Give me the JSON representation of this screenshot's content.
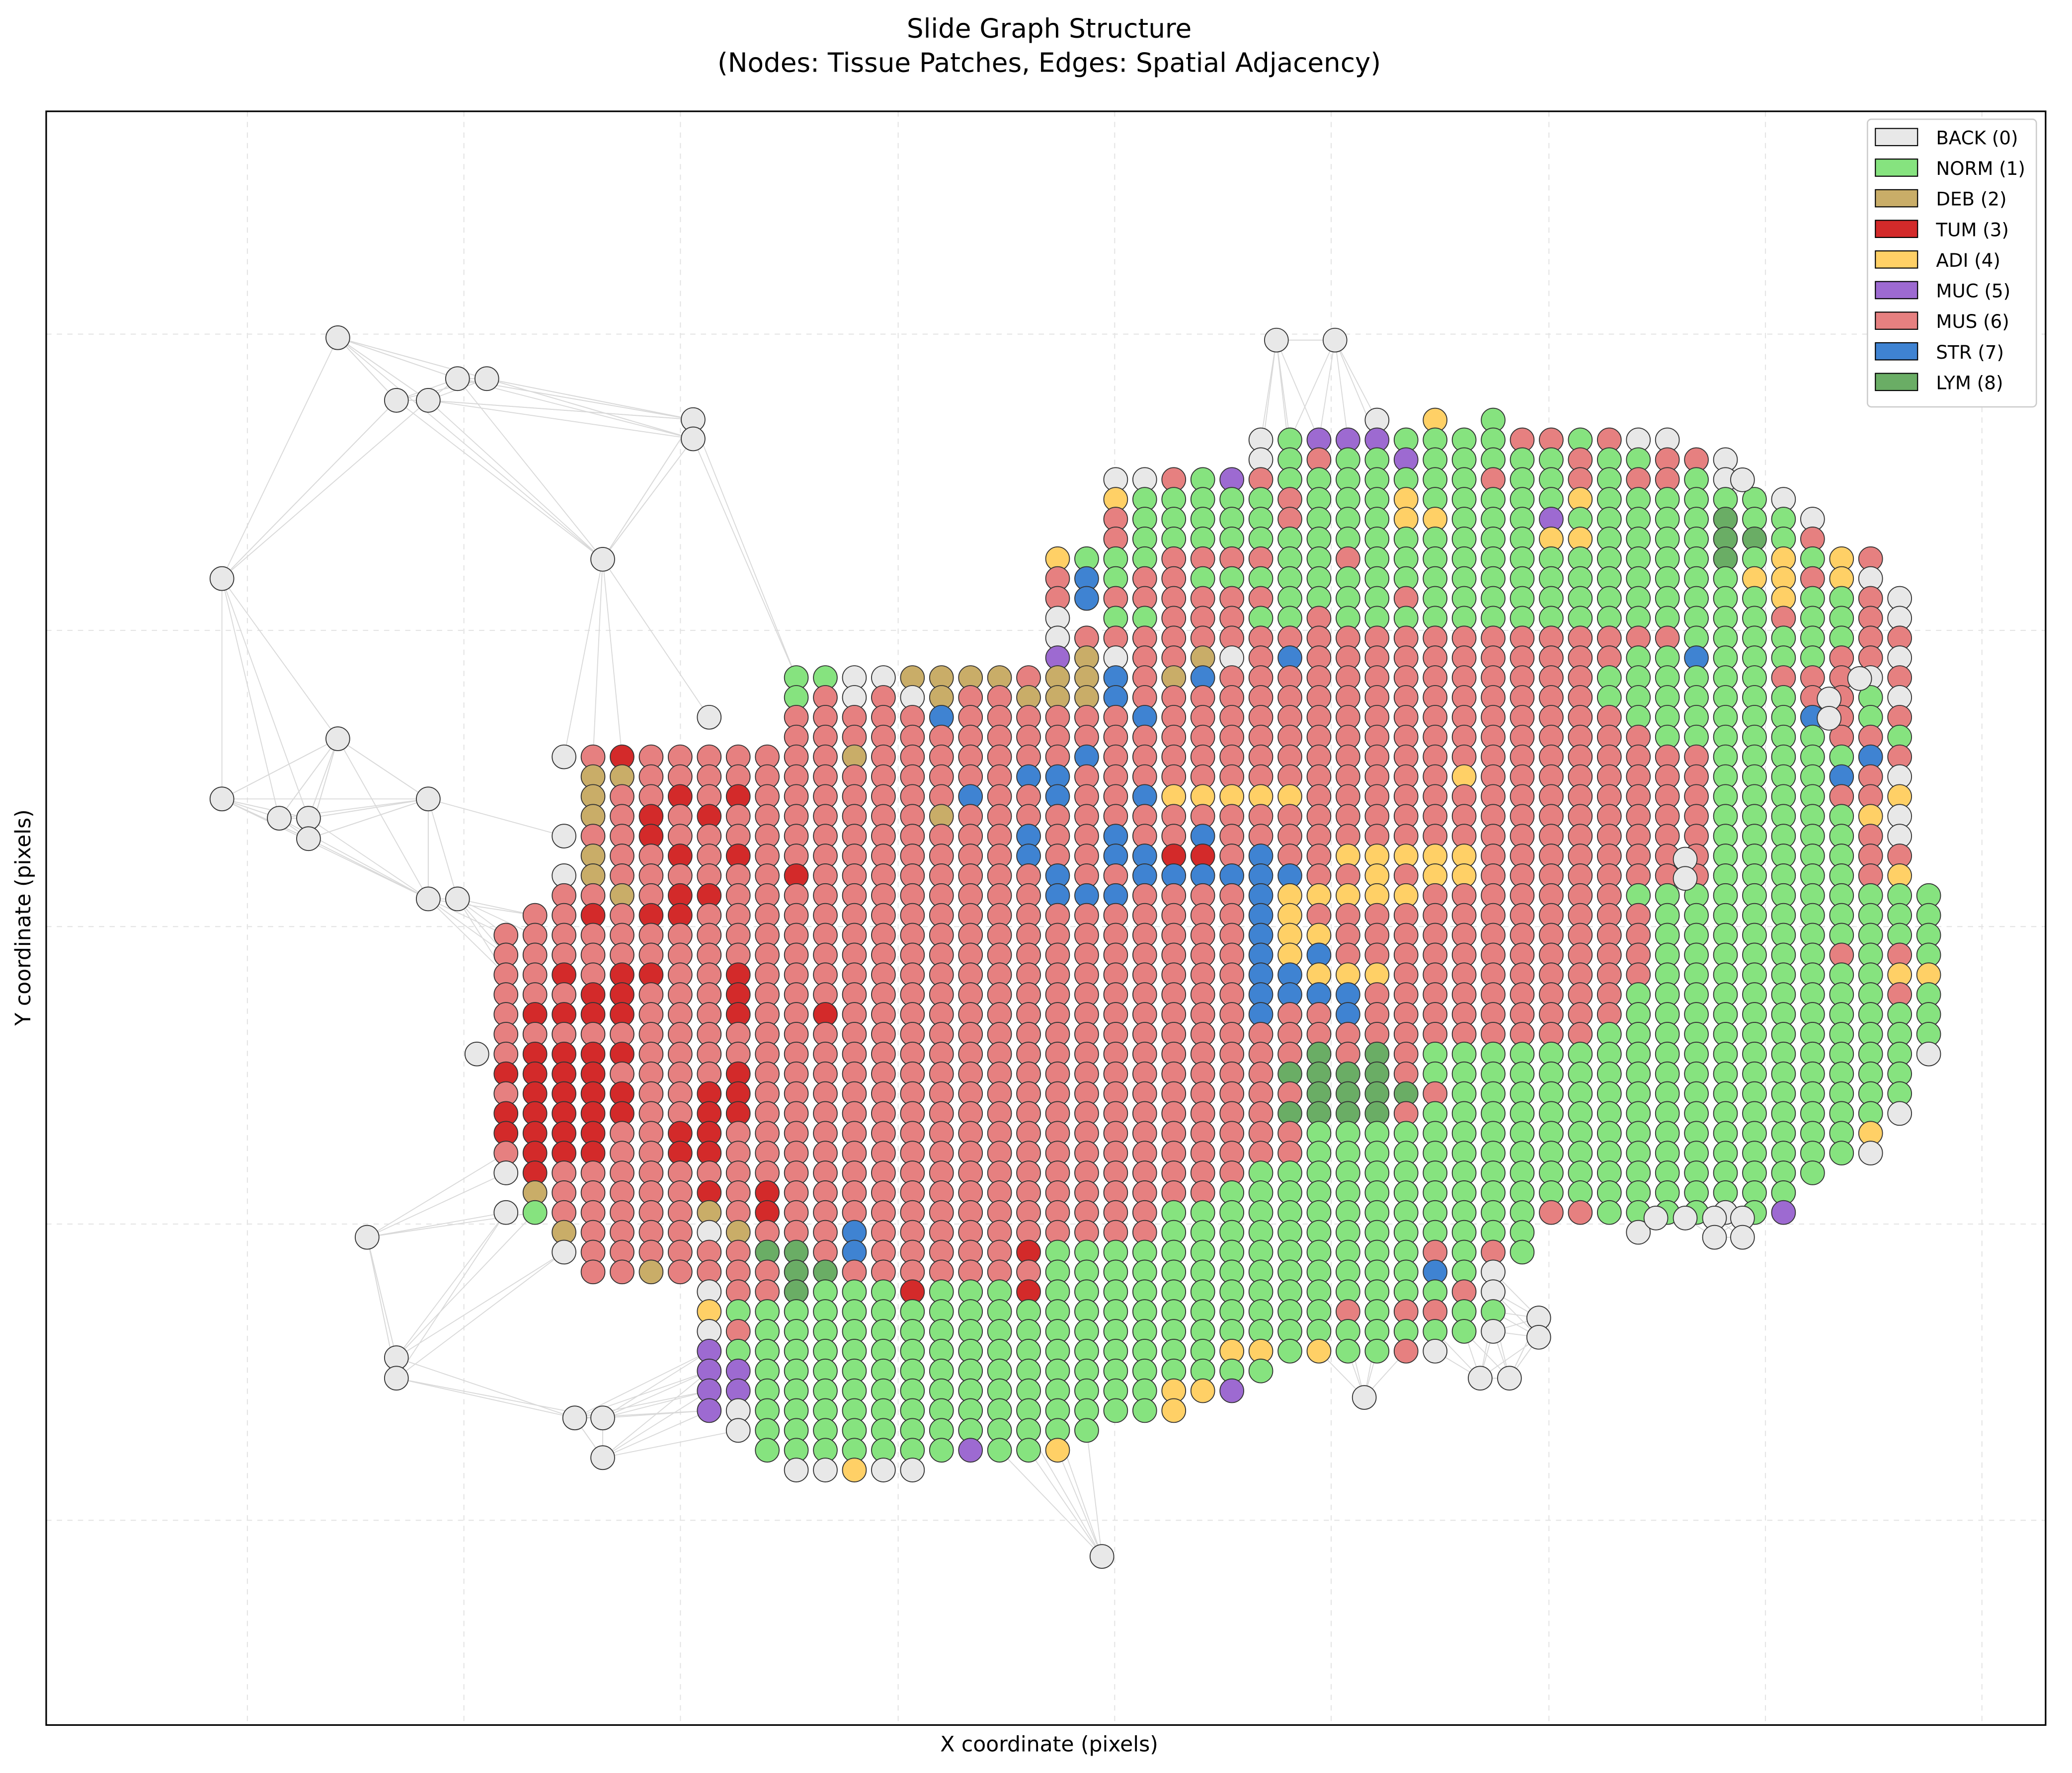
{
  "chart_data": {
    "type": "scatter",
    "title": "Slide Graph Structure",
    "subtitle": "(Nodes: Tissue Patches, Edges: Spatial Adjacency)",
    "xlabel": "X coordinate (pixels)",
    "ylabel": "Y coordinate (pixels)",
    "grid": true,
    "legend_position": "top-right",
    "edge_color": "#d9d9d9",
    "classes": [
      {
        "code": "B",
        "label": "BACK (0)",
        "color": "#e8e8e8"
      },
      {
        "code": "N",
        "label": "NORM (1)",
        "color": "#86e37f"
      },
      {
        "code": "D",
        "label": "DEB (2)",
        "color": "#c9ad68"
      },
      {
        "code": "T",
        "label": "TUM (3)",
        "color": "#d32a2a"
      },
      {
        "code": "A",
        "label": "ADI (4)",
        "color": "#ffd066"
      },
      {
        "code": "C",
        "label": "MUC (5)",
        "color": "#9d6ad1"
      },
      {
        "code": "M",
        "label": "MUS (6)",
        "color": "#e68080"
      },
      {
        "code": "S",
        "label": "STR (7)",
        "color": "#3f83d2"
      },
      {
        "code": "L",
        "label": "LYM (8)",
        "color": "#6aad65"
      }
    ],
    "grid_start": {
      "col": 19,
      "row": 11
    },
    "nodes_grid": [
      "..................................................",
      "...............................B.A.N..............",
      "...........................BNCCCNNNNMMNMBB........",
      "...........................BNMNNCNNNNNMNNMMB......",
      "......................BBMNCMNNNNNNNMNNMNMMNB......",
      "......................ANNNNNMNNNANNNNNANNNNNNB.....",
      "......................MNNNNNMNNNAANNNCNNNNNLNNB...",
      "......................MNNNNNNNNNNNNNNAANNNNLLNM...",
      "....................ANNNMMMMNNMNNNNNNNNNNNNLNANAM.",
      "....................MSNMMNNNNNNNNNNNNNNNNNNNAAMAB.",
      "....................MSMMMMMMNNNNMNNNNNNNNNNNNANNMB.",
      "....................B.NNMMMNNMNNNNNNNNNNNNNNNMNNMB",
      "....................BMMMMMMMMMMMMMMMMMMMMMNNNNNNMM",
      "....................CDBMMDBMSMMMMMMMMMMMNNSNNNNMMB",
      "...........NNBBDDDDMDDSMDSMMMMMMMMMMMMMNNNNNNMMMBM",
      "...........NMBMBDMMDDDSMMMMMMMMMMMMMMMMNNNNNNNMMNB",
      "........B..MMMMMSMMMMMMSMMMMMMMMMMMMMMMMNNNNNNSMNM",
      "...........MMMMMMMMMMMMMMMMMMMMMMMMMMMMMMNNNNNNMMN",
      "...BMTMMMMMMMDMMMMMMMSMMMMMMMMMMMMMMMMMMMMMNNNNNSM",
      "....DDMMMMMMMMMMMMMSSMMMMMMMMMMMMMAMMMMMMMMNNNNSMB",
      "....DMMTMTMMMMMMMSMMSMMSAAAAAMMMMMMMMMMMMMMNNNNMMA",
      "....DMTMTMMMMMMMDMMMMMMMMMMMMMMMMMMMMMMMMMMNNNNNAB",
      "...BMMTMMMMMMMMMMMMSMMSMMSMMMMMMMMMMMMMMMMMNNNNNMB",
      "....DMMTMTMMMMMMMMMSMMSSTTMSMMAAAAAMMMMMMMMNNNNNMM",
      "...BDMMMMMMTMMMMMMMMSMMSSSSSSMMAMAAMMMMMMMMNNNNNMA",
      "...MMDMTTMMMMMMMMMMMSSSMMMMSAAAAAMMMMMMMNNNNNNNNNNN",
      "..MMTMTTMMMMMMMMMMMMMMMMMMMSAMMMMMMMMMMMMNNNNNNNNNN",
      ".MMMMMMMMMMMMMMMMMMMMMMMMMMSAAMMMMMMMMMMMNNNNNNNNNN",
      ".MMMMMMMMMMMMMMMMMMMMMMMMMMSASMMMMMMMMMMMNNNNNNMNMN",
      ".MMTMTTMMTMMMMMMMMMMMMMMMMMSSAAAMMMMMMMMMNNNNNNNNAA",
      ".MMMTTMMMTMMMMMMMMMMMMMMMMMSSSSMMMMMMMMMNNNNNNNNNMN",
      ".MTTTTMMMTMMTMMMMMMMMMMMMMMSMMSMMMMMMMMMNNNNNNNNNNN",
      ".MMMMMMMMMMMMMMMMMMMMMMMMMMMMMMMMMMMMMMNNNNNNNNNNNN",
      "BMTTTTMMMMMMMMMMMMMMMMMMMMMMMLMLMNNNNNNNNNNNNNNNNNB",
      ".TTTTMMMMTMMMMMMMMMMMMMMMMMMLLLLMNNNNNNNNNNNNNNNNN",
      ".MTTTTMMTTMMMMMMMMMMMMMMMMMMMLLLLMNNNNNNNNNNNNNNNN",
      ".TTTTTMMTTMMMMMMMMMMMMMMMMMMLLLLMNNNNNNNNNNNNNNNNB",
      ".TTTTMMTTMMMMMMMMMMMMMMMMMMMMNNNNNNNNNNNNNNNNNNNA.",
      ".MTTTMMTTMMMMMMMMMMMMMMMMMMMMNNNNNNNNNNNNNNNNNNNB.",
      ".BTMMMMMMMMMMMMMMMMMMMMMMMMNNNNNNNNNNNNNNNNNNNN...",
      "..DMMMMMTMTMMMMMMMMMMMMMMMNNNNNNNNNNNNNNNNNNNN....",
      ".BNMMMMMDMTMMMMMMMMMMMMMNNNNNNNNNNNNNMMNNNNBNC....",
      "...DMMMMBDMMMSMMMMMMMMMMNNNNNNNNNNNNN...B.........",
      "...BMMMMMMLLMSMMMMMTNNNNNNNNNNNNNMNMN.............",
      "....MMDMMMMLLMMMMMMMNNNNNNNNNNNNNSNB..............",
      "........BMMLNNNTNNNTNNNNNNNNNNNNNNMB..............",
      "........ANNNNNNNNNNNNNNNNNNNNNMNMMNN..............",
      "........BMNNNNNNNNNNNNNNNNNNNNNNNNNB..............",
      "........CNNNNNNNNNNNNNNNNNAANANNMB................",
      "........CCNNNNNNNNNNNNNNNNNN......................",
      "........CCNNNNNNNNNNNNNNAAC.......................",
      "........CBNNNNNNNNNNNNNNA.........................",
      ".........BNNNNNNNNNNNN............................",
      "..........NNNNNNNCNNA.............................",
      "...........BBABB................................."
    ],
    "outlier_nodes": [
      {
        "x": 229,
        "y": 188
      },
      {
        "x": 275,
        "y": 240
      },
      {
        "x": 300,
        "y": 240
      },
      {
        "x": 323,
        "y": 222
      },
      {
        "x": 346,
        "y": 222
      },
      {
        "x": 508,
        "y": 256
      },
      {
        "x": 508,
        "y": 272
      },
      {
        "x": 138,
        "y": 388
      },
      {
        "x": 437,
        "y": 372
      },
      {
        "x": 229,
        "y": 521
      },
      {
        "x": 138,
        "y": 571
      },
      {
        "x": 300,
        "y": 571
      },
      {
        "x": 183,
        "y": 587
      },
      {
        "x": 206,
        "y": 587
      },
      {
        "x": 206,
        "y": 604
      },
      {
        "x": 300,
        "y": 654
      },
      {
        "x": 323,
        "y": 654
      },
      {
        "x": 966,
        "y": 190
      },
      {
        "x": 1012,
        "y": 190
      },
      {
        "x": 1332,
        "y": 306
      },
      {
        "x": 1424,
        "y": 471
      },
      {
        "x": 1400,
        "y": 488
      },
      {
        "x": 1400,
        "y": 504
      },
      {
        "x": 1287,
        "y": 621
      },
      {
        "x": 1287,
        "y": 637
      },
      {
        "x": 1264,
        "y": 919
      },
      {
        "x": 1287,
        "y": 919
      },
      {
        "x": 1310,
        "y": 919
      },
      {
        "x": 1332,
        "y": 919
      },
      {
        "x": 1310,
        "y": 935
      },
      {
        "x": 1332,
        "y": 935
      },
      {
        "x": 1172,
        "y": 1002
      },
      {
        "x": 1172,
        "y": 1018
      },
      {
        "x": 1126,
        "y": 1052
      },
      {
        "x": 1149,
        "y": 1052
      },
      {
        "x": 1035,
        "y": 1068
      },
      {
        "x": 829,
        "y": 1200
      },
      {
        "x": 275,
        "y": 1035
      },
      {
        "x": 275,
        "y": 1052
      },
      {
        "x": 252,
        "y": 935
      },
      {
        "x": 415,
        "y": 1085
      },
      {
        "x": 437,
        "y": 1085
      },
      {
        "x": 437,
        "y": 1118
      }
    ],
    "xlim": [
      0,
      1570
    ],
    "ylim": [
      1340,
      0
    ],
    "x_ticks": [
      158,
      328,
      498,
      669,
      839,
      1009,
      1180,
      1350,
      1520
    ],
    "y_ticks": [
      185,
      431,
      677,
      924,
      1170
    ]
  }
}
